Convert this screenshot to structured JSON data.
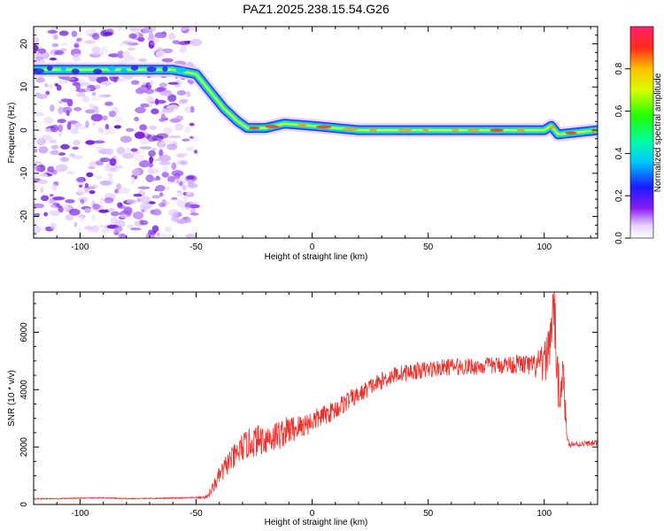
{
  "title": "PAZ1.2025.238.15.54.G26",
  "charts": [
    {
      "type": "heatmap",
      "xlabel": "Height of straight line (km)",
      "ylabel": "Frequency (Hz)",
      "xlim": [
        -120,
        123
      ],
      "ylim": [
        -25,
        24
      ],
      "xticks": [
        -100,
        -50,
        0,
        50,
        100
      ],
      "yticks": [
        -20,
        -10,
        0,
        10,
        20
      ],
      "colorbar_label": "Normalized spectral amplitude",
      "colorbar_range": [
        0,
        1
      ],
      "colorbar_ticks": [
        "0.0",
        "0.2",
        "0.4",
        "0.6",
        "0.8"
      ],
      "colorbar_tick_values": [
        0,
        0.2,
        0.4,
        0.6,
        0.8
      ],
      "ridge": [
        {
          "x": -120,
          "y": 14
        },
        {
          "x": -60,
          "y": 14
        },
        {
          "x": -50,
          "y": 13
        },
        {
          "x": -44,
          "y": 9
        },
        {
          "x": -38,
          "y": 5
        },
        {
          "x": -32,
          "y": 2
        },
        {
          "x": -28,
          "y": 0.5
        },
        {
          "x": -20,
          "y": 0.5
        },
        {
          "x": -12,
          "y": 1.5
        },
        {
          "x": 0,
          "y": 1
        },
        {
          "x": 20,
          "y": 0
        },
        {
          "x": 60,
          "y": 0
        },
        {
          "x": 100,
          "y": 0
        },
        {
          "x": 103,
          "y": 1
        },
        {
          "x": 106,
          "y": -1
        },
        {
          "x": 123,
          "y": 0
        }
      ],
      "noise_xrange": [
        -120,
        -50
      ]
    },
    {
      "type": "line",
      "xlabel": "Height of straight line (km)",
      "ylabel": "SNR (10 * v/v)",
      "xlim": [
        -120,
        123
      ],
      "ylim": [
        0,
        7400
      ],
      "xticks": [
        -100,
        -50,
        0,
        50,
        100
      ],
      "yticks": [
        0,
        2000,
        4000,
        6000
      ],
      "series": [
        {
          "color": "#e8322d",
          "x": [
            -120,
            -110,
            -100,
            -90,
            -80,
            -70,
            -60,
            -50,
            -46,
            -44,
            -42,
            -40,
            -38,
            -36,
            -34,
            -32,
            -30,
            -25,
            -20,
            -15,
            -10,
            -5,
            0,
            5,
            10,
            15,
            20,
            25,
            30,
            35,
            40,
            50,
            60,
            70,
            80,
            90,
            95,
            100,
            102,
            104,
            106,
            108,
            110,
            112,
            115,
            123
          ],
          "y": [
            200,
            200,
            220,
            230,
            200,
            210,
            220,
            240,
            250,
            400,
            700,
            1000,
            1200,
            1500,
            1600,
            1800,
            2000,
            2200,
            2300,
            2400,
            2600,
            2700,
            2900,
            3100,
            3300,
            3600,
            3800,
            4100,
            4300,
            4500,
            4600,
            4700,
            4800,
            4800,
            4850,
            4900,
            4800,
            4900,
            5500,
            7000,
            4000,
            4500,
            2200,
            2100,
            2100,
            2150
          ],
          "noise_amplitude": [
            20,
            20,
            20,
            20,
            20,
            20,
            20,
            20,
            50,
            150,
            250,
            300,
            400,
            400,
            450,
            500,
            500,
            550,
            550,
            550,
            500,
            450,
            400,
            350,
            350,
            350,
            300,
            300,
            300,
            300,
            300,
            300,
            300,
            300,
            300,
            350,
            400,
            700,
            900,
            900,
            900,
            900,
            150,
            120,
            100,
            100
          ]
        }
      ]
    }
  ]
}
